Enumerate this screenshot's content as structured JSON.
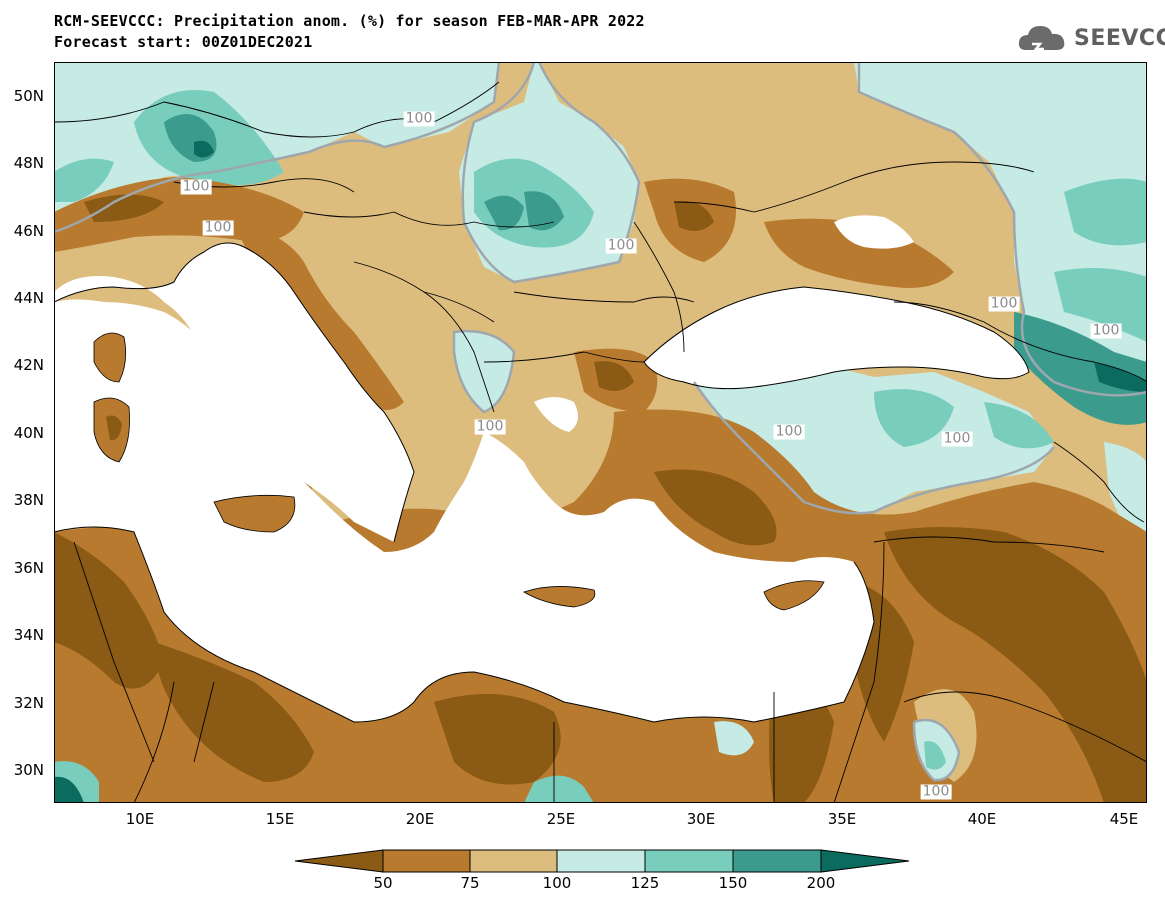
{
  "title": {
    "line1": "RCM-SEEVCCC: Precipitation anom. (%) for season FEB-MAR-APR 2022",
    "line2": "Forecast start: 00Z01DEC2021"
  },
  "logo": {
    "text": "SEEVCCC",
    "icon": "cloud-icon"
  },
  "axes": {
    "lat_labels": [
      "50N",
      "48N",
      "46N",
      "44N",
      "42N",
      "40N",
      "38N",
      "36N",
      "34N",
      "32N",
      "30N"
    ],
    "lon_labels": [
      "10E",
      "15E",
      "20E",
      "25E",
      "30E",
      "35E",
      "40E",
      "45E"
    ]
  },
  "contour_labels": [
    "100",
    "100",
    "100",
    "100",
    "100",
    "100",
    "100",
    "100",
    "100",
    "100"
  ],
  "colorbar": {
    "labels": [
      "50",
      "75",
      "100",
      "125",
      "150",
      "200"
    ],
    "colors": [
      "#8b5a14",
      "#b87a2f",
      "#ddbd7e",
      "#c6ebe4",
      "#78cdbd",
      "#3b9c8e",
      "#0a6b5e"
    ]
  },
  "colors": {
    "sea": "#ffffff",
    "dry_strong": "#8b5a14",
    "dry": "#b87a2f",
    "dry_light": "#ddbd7e",
    "wet_light": "#c6ebe4",
    "wet": "#78cdbd",
    "wet_strong": "#3b9c8e",
    "wet_very_strong": "#0a6b5e",
    "contour_100": "#9ea7ad"
  }
}
